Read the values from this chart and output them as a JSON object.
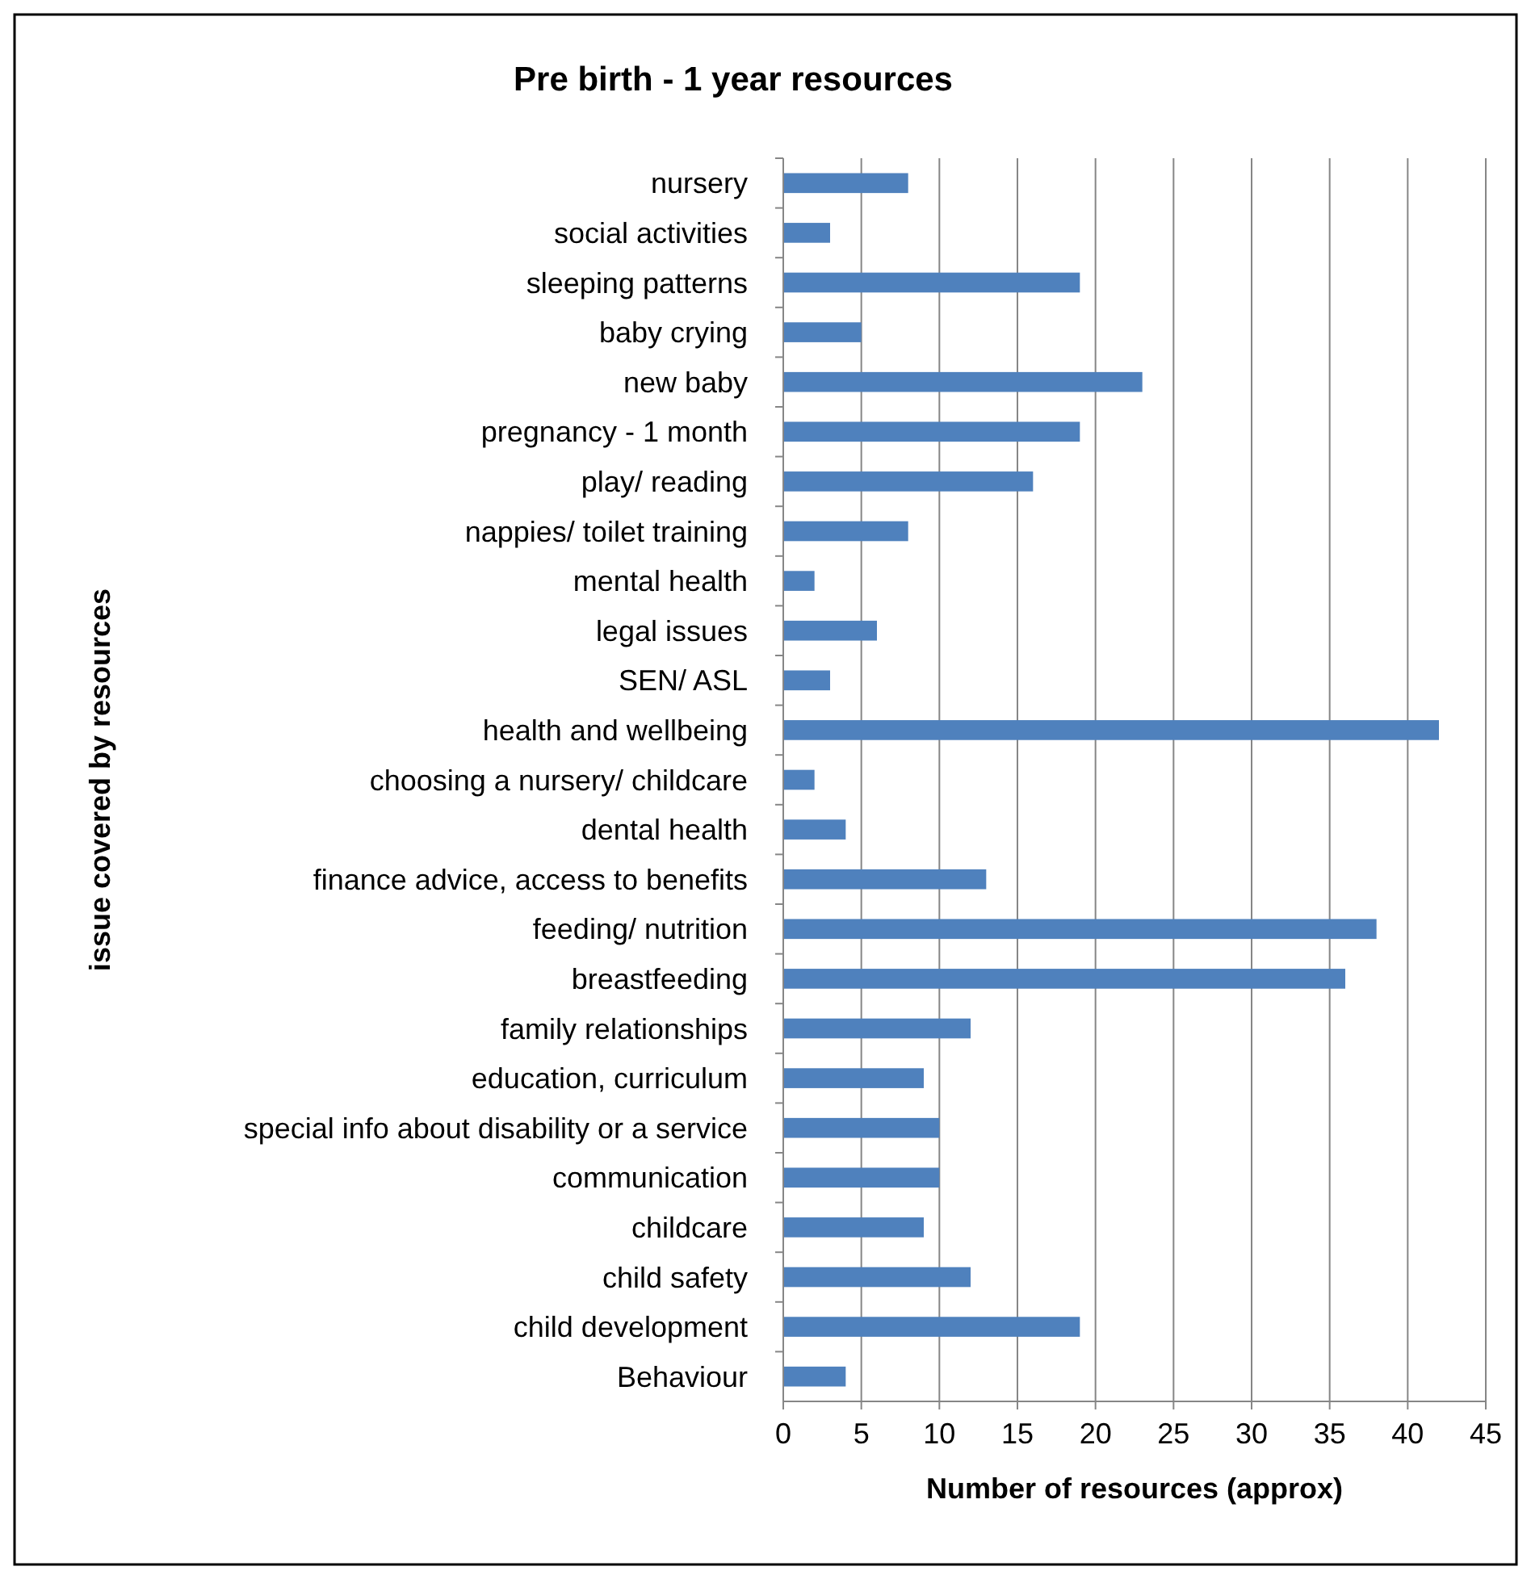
{
  "chart_data": {
    "type": "bar",
    "orientation": "horizontal",
    "title": "Pre birth - 1 year resources",
    "xlabel": "Number of resources (approx)",
    "ylabel": "issue covered by resources",
    "categories": [
      "nursery",
      "social activities",
      "sleeping patterns",
      "baby crying",
      "new baby",
      "pregnancy - 1 month",
      "play/ reading",
      "nappies/ toilet training",
      "mental health",
      "legal issues",
      "SEN/ ASL",
      "health and wellbeing",
      "choosing a nursery/ childcare",
      "dental health",
      "finance advice, access to benefits",
      "feeding/ nutrition",
      "breastfeeding",
      "family relationships",
      "education, curriculum",
      "special info about disability or a service",
      "communication",
      "childcare",
      "child safety",
      "child development",
      "Behaviour"
    ],
    "values": [
      8,
      3,
      19,
      5,
      23,
      19,
      16,
      8,
      2,
      6,
      3,
      42,
      2,
      4,
      13,
      38,
      36,
      12,
      9,
      10,
      10,
      9,
      12,
      19,
      4
    ],
    "color": "#4f81bd",
    "xlim": [
      0,
      45
    ],
    "xticks": [
      0,
      5,
      10,
      15,
      20,
      25,
      30,
      35,
      40,
      45
    ],
    "grid": "x"
  }
}
